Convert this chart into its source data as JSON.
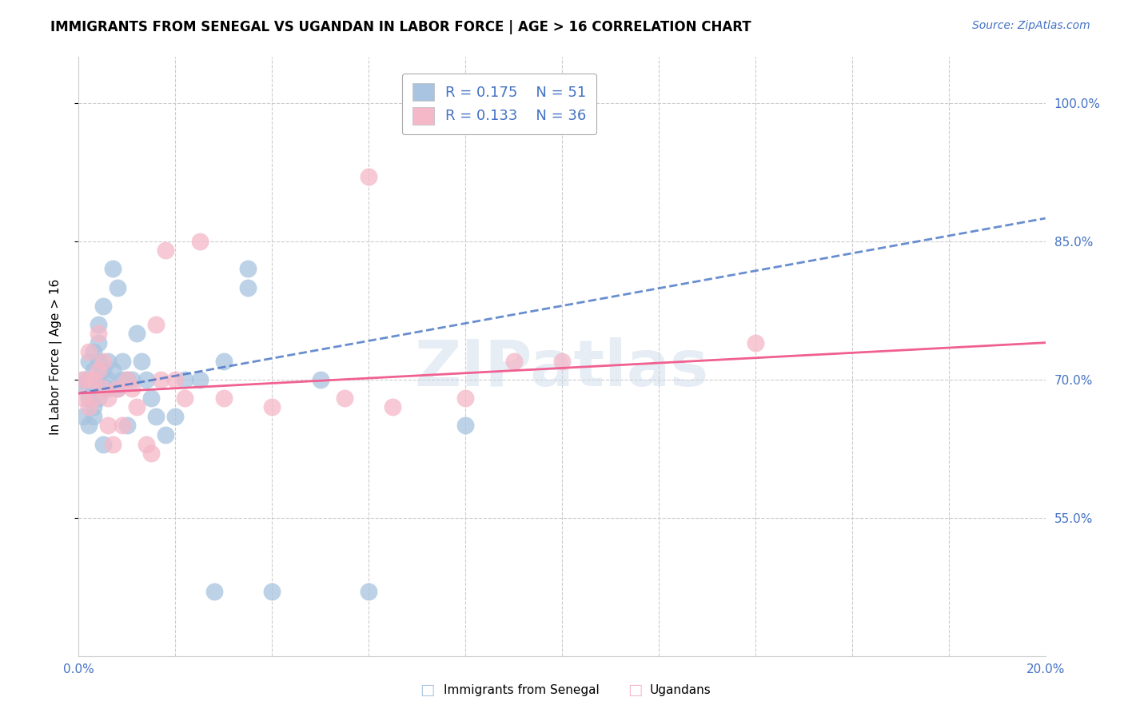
{
  "title": "IMMIGRANTS FROM SENEGAL VS UGANDAN IN LABOR FORCE | AGE > 16 CORRELATION CHART",
  "source": "Source: ZipAtlas.com",
  "ylabel": "In Labor Force | Age > 16",
  "xlim": [
    0.0,
    0.2
  ],
  "ylim": [
    0.4,
    1.05
  ],
  "yticks": [
    0.55,
    0.7,
    0.85,
    1.0
  ],
  "ytick_labels": [
    "55.0%",
    "70.0%",
    "85.0%",
    "100.0%"
  ],
  "xticks": [
    0.0,
    0.02,
    0.04,
    0.06,
    0.08,
    0.1,
    0.12,
    0.14,
    0.16,
    0.18,
    0.2
  ],
  "xtick_labels": [
    "0.0%",
    "",
    "",
    "",
    "",
    "",
    "",
    "",
    "",
    "",
    "20.0%"
  ],
  "watermark": "ZIPatlas",
  "senegal_R": 0.175,
  "senegal_N": 51,
  "ugandan_R": 0.133,
  "ugandan_N": 36,
  "senegal_color": "#a8c4e0",
  "ugandan_color": "#f4b8c8",
  "senegal_line_color": "#4472c4",
  "ugandan_line_color": "#f06090",
  "background_color": "#ffffff",
  "senegal_x": [
    0.001,
    0.001,
    0.001,
    0.002,
    0.002,
    0.002,
    0.002,
    0.003,
    0.003,
    0.003,
    0.003,
    0.003,
    0.003,
    0.004,
    0.004,
    0.004,
    0.004,
    0.004,
    0.005,
    0.005,
    0.005,
    0.005,
    0.006,
    0.006,
    0.006,
    0.007,
    0.007,
    0.008,
    0.008,
    0.009,
    0.009,
    0.01,
    0.01,
    0.011,
    0.012,
    0.013,
    0.014,
    0.015,
    0.016,
    0.018,
    0.02,
    0.022,
    0.025,
    0.028,
    0.03,
    0.035,
    0.04,
    0.05,
    0.06,
    0.08,
    0.035
  ],
  "senegal_y": [
    0.695,
    0.7,
    0.66,
    0.68,
    0.7,
    0.72,
    0.65,
    0.67,
    0.69,
    0.7,
    0.71,
    0.73,
    0.66,
    0.68,
    0.7,
    0.72,
    0.74,
    0.76,
    0.69,
    0.71,
    0.63,
    0.78,
    0.7,
    0.72,
    0.69,
    0.71,
    0.82,
    0.8,
    0.69,
    0.72,
    0.7,
    0.7,
    0.65,
    0.7,
    0.75,
    0.72,
    0.7,
    0.68,
    0.66,
    0.64,
    0.66,
    0.7,
    0.7,
    0.47,
    0.72,
    0.82,
    0.47,
    0.7,
    0.47,
    0.65,
    0.8
  ],
  "ugandan_x": [
    0.001,
    0.001,
    0.002,
    0.002,
    0.002,
    0.003,
    0.003,
    0.004,
    0.004,
    0.005,
    0.005,
    0.006,
    0.006,
    0.007,
    0.008,
    0.009,
    0.01,
    0.011,
    0.012,
    0.014,
    0.015,
    0.016,
    0.017,
    0.018,
    0.02,
    0.022,
    0.025,
    0.03,
    0.04,
    0.055,
    0.06,
    0.08,
    0.09,
    0.14,
    0.065,
    0.1
  ],
  "ugandan_y": [
    0.68,
    0.7,
    0.67,
    0.7,
    0.73,
    0.7,
    0.68,
    0.71,
    0.75,
    0.69,
    0.72,
    0.68,
    0.65,
    0.63,
    0.69,
    0.65,
    0.7,
    0.69,
    0.67,
    0.63,
    0.62,
    0.76,
    0.7,
    0.84,
    0.7,
    0.68,
    0.85,
    0.68,
    0.67,
    0.68,
    0.92,
    0.68,
    0.72,
    0.74,
    0.67,
    0.72
  ]
}
